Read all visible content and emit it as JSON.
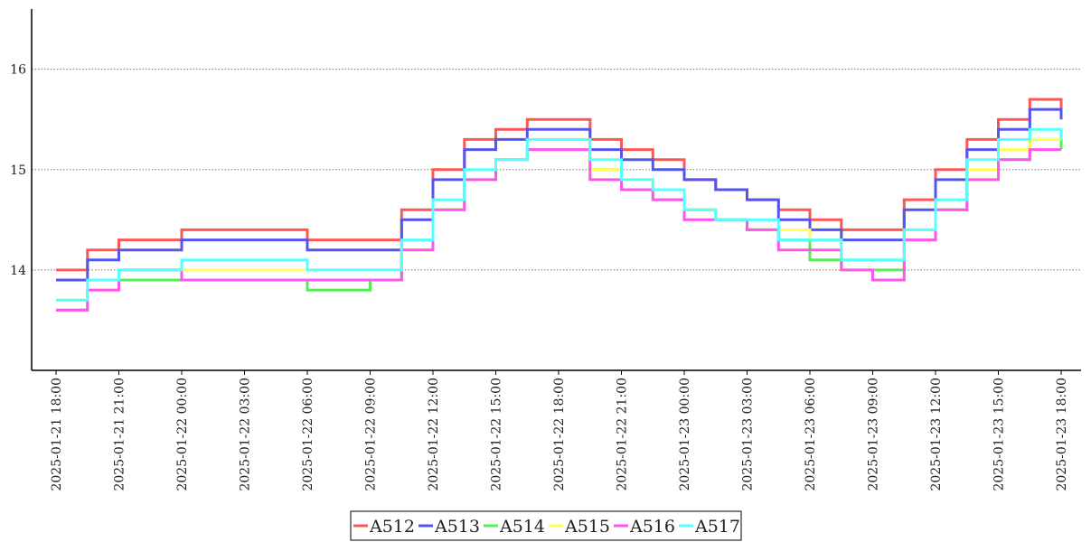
{
  "chart_data": {
    "type": "line",
    "title": "",
    "xlabel": "",
    "ylabel": "",
    "grid": "horizontal dotted",
    "legend_position": "bottom-center",
    "x_range": [
      "2025-01-21 18:00",
      "2025-01-23 18:00"
    ],
    "ylim": [
      13.0,
      16.6
    ],
    "y_ticks": [
      14,
      15,
      16
    ],
    "y_tick_labels": [
      "14",
      "15",
      "16"
    ],
    "x_ticks": [
      "2025-01-21 18:00",
      "2025-01-21 21:00",
      "2025-01-22 00:00",
      "2025-01-22 03:00",
      "2025-01-22 06:00",
      "2025-01-22 09:00",
      "2025-01-22 12:00",
      "2025-01-22 15:00",
      "2025-01-22 18:00",
      "2025-01-22 21:00",
      "2025-01-23 00:00",
      "2025-01-23 03:00",
      "2025-01-23 06:00",
      "2025-01-23 09:00",
      "2025-01-23 12:00",
      "2025-01-23 15:00",
      "2025-01-23 18:00"
    ],
    "x_tick_labels": [
      "2025-01-21 18:00",
      "2025-01-21 21:00",
      "2025-01-22 00:00",
      "2025-01-22 03:00",
      "2025-01-22 06:00",
      "2025-01-22 09:00",
      "2025-01-22 12:00",
      "2025-01-22 15:00",
      "2025-01-22 18:00",
      "2025-01-22 21:00",
      "2025-01-23 00:00",
      "2025-01-23 03:00",
      "2025-01-23 06:00",
      "2025-01-23 09:00",
      "2025-01-23 12:00",
      "2025-01-23 15:00",
      "2025-01-23 18:00"
    ],
    "x": [
      "2025-01-21 18:00",
      "2025-01-21 19:30",
      "2025-01-21 21:00",
      "2025-01-22 00:00",
      "2025-01-22 03:00",
      "2025-01-22 06:00",
      "2025-01-22 08:00",
      "2025-01-22 09:00",
      "2025-01-22 10:30",
      "2025-01-22 12:00",
      "2025-01-22 13:30",
      "2025-01-22 15:00",
      "2025-01-22 16:30",
      "2025-01-22 18:00",
      "2025-01-22 19:30",
      "2025-01-22 21:00",
      "2025-01-22 22:30",
      "2025-01-23 00:00",
      "2025-01-23 01:30",
      "2025-01-23 03:00",
      "2025-01-23 04:30",
      "2025-01-23 06:00",
      "2025-01-23 07:30",
      "2025-01-23 09:00",
      "2025-01-23 10:30",
      "2025-01-23 12:00",
      "2025-01-23 13:30",
      "2025-01-23 15:00",
      "2025-01-23 16:30",
      "2025-01-23 18:00"
    ],
    "series": [
      {
        "name": "A512",
        "color": "#ff5555",
        "values": [
          14.0,
          14.2,
          14.3,
          14.4,
          14.4,
          14.3,
          14.3,
          14.3,
          14.6,
          15.0,
          15.3,
          15.4,
          15.5,
          15.5,
          15.3,
          15.2,
          15.1,
          14.9,
          14.8,
          14.7,
          14.6,
          14.5,
          14.4,
          14.4,
          14.7,
          15.0,
          15.3,
          15.5,
          15.7,
          15.6
        ]
      },
      {
        "name": "A513",
        "color": "#5555ee",
        "values": [
          13.9,
          14.1,
          14.2,
          14.3,
          14.3,
          14.2,
          14.2,
          14.2,
          14.5,
          14.9,
          15.2,
          15.3,
          15.4,
          15.4,
          15.2,
          15.1,
          15.0,
          14.9,
          14.8,
          14.7,
          14.5,
          14.4,
          14.3,
          14.3,
          14.6,
          14.9,
          15.2,
          15.4,
          15.6,
          15.5
        ]
      },
      {
        "name": "A514",
        "color": "#55ee55",
        "values": [
          13.6,
          13.8,
          13.9,
          13.9,
          13.9,
          13.8,
          13.8,
          13.9,
          14.2,
          14.6,
          14.9,
          15.1,
          15.2,
          15.2,
          15.0,
          14.8,
          14.7,
          14.6,
          14.5,
          14.4,
          14.3,
          14.1,
          14.0,
          14.0,
          14.3,
          14.6,
          14.9,
          15.1,
          15.3,
          15.2
        ]
      },
      {
        "name": "A515",
        "color": "#ffff55",
        "values": [
          13.7,
          13.8,
          14.0,
          14.0,
          14.0,
          14.0,
          14.0,
          14.0,
          14.2,
          14.6,
          14.9,
          15.1,
          15.3,
          15.3,
          15.0,
          14.9,
          14.8,
          14.6,
          14.5,
          14.4,
          14.4,
          14.3,
          14.1,
          14.1,
          14.4,
          14.7,
          15.0,
          15.2,
          15.3,
          15.3
        ]
      },
      {
        "name": "A516",
        "color": "#ff55ee",
        "values": [
          13.6,
          13.8,
          14.0,
          13.9,
          13.9,
          13.9,
          13.9,
          13.9,
          14.2,
          14.6,
          14.9,
          15.1,
          15.2,
          15.2,
          14.9,
          14.8,
          14.7,
          14.5,
          14.5,
          14.4,
          14.2,
          14.2,
          14.0,
          13.9,
          14.3,
          14.6,
          14.9,
          15.1,
          15.2,
          15.2
        ]
      },
      {
        "name": "A517",
        "color": "#55ffff",
        "values": [
          13.7,
          13.9,
          14.0,
          14.1,
          14.1,
          14.0,
          14.0,
          14.0,
          14.3,
          14.7,
          15.0,
          15.1,
          15.3,
          15.3,
          15.1,
          14.9,
          14.8,
          14.6,
          14.5,
          14.5,
          14.3,
          14.3,
          14.1,
          14.1,
          14.4,
          14.7,
          15.1,
          15.3,
          15.4,
          15.3
        ]
      }
    ]
  }
}
